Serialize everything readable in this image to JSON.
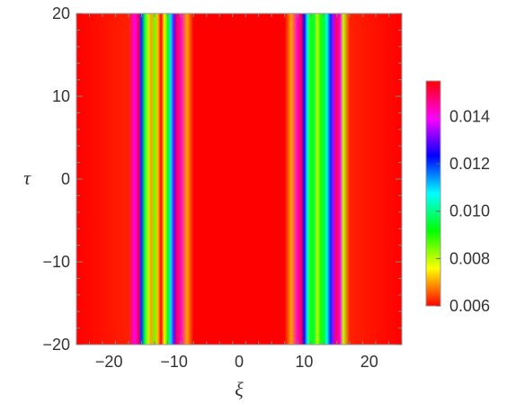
{
  "chart_data": {
    "type": "heatmap",
    "title": "",
    "xlabel": "ξ",
    "ylabel": "τ",
    "xlim": [
      -25,
      25
    ],
    "ylim": [
      -20,
      20
    ],
    "x_ticks": [
      -20,
      -10,
      0,
      10,
      20
    ],
    "x_tick_labels": [
      "−20",
      "−10",
      "0",
      "10",
      "20"
    ],
    "y_ticks": [
      -20,
      -10,
      0,
      10,
      20
    ],
    "y_tick_labels": [
      "−20",
      "−10",
      "0",
      "10",
      "20"
    ],
    "colorbar": {
      "range": [
        0.006,
        0.0155
      ],
      "ticks": [
        0.006,
        0.008,
        0.01,
        0.012,
        0.014
      ],
      "tick_labels": [
        "0.006",
        "0.008",
        "0.010",
        "0.012",
        "0.014"
      ],
      "colormap": "hue",
      "colors": [
        "#ff0000",
        "#ffff00",
        "#00ff00",
        "#00ffff",
        "#0000ff",
        "#ff00ff",
        "#ff0000"
      ]
    },
    "profile_along_xi": {
      "xi": [
        -25,
        -17,
        -16,
        -15.5,
        -15,
        -14.5,
        -14,
        -13.5,
        -13,
        -12.5,
        -12,
        -11.5,
        -11,
        -10.5,
        -10,
        -9.5,
        -9,
        -8,
        -7,
        7,
        8,
        9,
        9.5,
        10,
        10.5,
        11,
        11.5,
        12,
        12.5,
        13,
        13.5,
        14,
        14.5,
        15,
        15.5,
        16,
        17,
        25
      ],
      "value": [
        0.006,
        0.0062,
        0.014,
        0.015,
        0.012,
        0.0095,
        0.008,
        0.007,
        0.0085,
        0.0072,
        0.006,
        0.0075,
        0.009,
        0.011,
        0.013,
        0.015,
        0.0142,
        0.007,
        0.006,
        0.006,
        0.007,
        0.0142,
        0.015,
        0.0125,
        0.0105,
        0.009,
        0.0095,
        0.008,
        0.009,
        0.0095,
        0.0105,
        0.012,
        0.0135,
        0.015,
        0.014,
        0.008,
        0.0062,
        0.006
      ],
      "uniform_in_tau": true
    }
  }
}
